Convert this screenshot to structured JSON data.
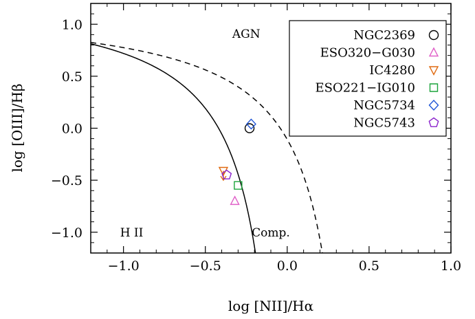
{
  "chart_data": {
    "type": "scatter",
    "title": "",
    "xlabel": "log [NII]/Hα",
    "ylabel": "log [OIII]/Hβ",
    "xlim": [
      -1.2,
      1.0
    ],
    "ylim": [
      -1.2,
      1.2
    ],
    "xticks": [
      -1.0,
      -0.5,
      0.0,
      0.5,
      1.0
    ],
    "xtick_labels": [
      "−1.0",
      "−0.5",
      "0.0",
      "0.5",
      "1.0"
    ],
    "yticks": [
      -1.0,
      -0.5,
      0.0,
      0.5,
      1.0
    ],
    "ytick_labels": [
      "−1.0",
      "−0.5",
      "0.0",
      "0.5",
      "1.0"
    ],
    "grid": false,
    "legend_position": "top-right",
    "curves": [
      {
        "style": "solid",
        "formula": "0.61/(x-0.05)+1.30",
        "color": "#000000"
      },
      {
        "style": "dashed",
        "formula": "0.61/(x-0.47)+1.19",
        "color": "#000000"
      }
    ],
    "region_labels": [
      {
        "text": "AGN",
        "x": -0.25,
        "y": 0.87
      },
      {
        "text": "H II",
        "x": -0.95,
        "y": -1.04
      },
      {
        "text": "Comp.",
        "x": -0.1,
        "y": -1.04
      }
    ],
    "series": [
      {
        "name": "NGC2369",
        "marker": "circle",
        "color": "#000000",
        "points": [
          {
            "x": -0.23,
            "y": 0.0
          }
        ]
      },
      {
        "name": "ESO320−G030",
        "marker": "triangle-up",
        "color": "#e060c8",
        "points": [
          {
            "x": -0.32,
            "y": -0.7
          }
        ]
      },
      {
        "name": "IC4280",
        "marker": "triangle-down",
        "color": "#e06a10",
        "points": [
          {
            "x": -0.39,
            "y": -0.41
          }
        ],
        "arrow": {
          "y_end": -0.5
        }
      },
      {
        "name": "ESO221−IG010",
        "marker": "square",
        "color": "#1aa33a",
        "points": [
          {
            "x": -0.3,
            "y": -0.55
          }
        ]
      },
      {
        "name": "NGC5734",
        "marker": "diamond",
        "color": "#1f55d6",
        "points": [
          {
            "x": -0.22,
            "y": 0.04
          }
        ]
      },
      {
        "name": "NGC5743",
        "marker": "pentagon",
        "color": "#8a22cc",
        "points": [
          {
            "x": -0.37,
            "y": -0.45
          }
        ]
      }
    ]
  }
}
